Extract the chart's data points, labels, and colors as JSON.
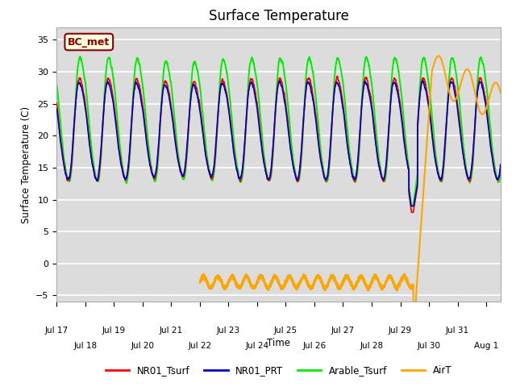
{
  "title": "Surface Temperature",
  "ylabel": "Surface Temperature (C)",
  "xlabel": "Time",
  "ylim": [
    -6,
    37
  ],
  "xlim_days": [
    0,
    15.5
  ],
  "tick_labels": [
    "Jul 17",
    "Jul 18",
    "Jul 19",
    "Jul 20",
    "Jul 21",
    "Jul 22",
    "Jul 23",
    "Jul 24",
    "Jul 25",
    "Jul 26",
    "Jul 27",
    "Jul 28",
    "Jul 29",
    "Jul 30",
    "Jul 31",
    "Aug 1"
  ],
  "legend_labels": [
    "NR01_Tsurf",
    "NR01_PRT",
    "Arable_Tsurf",
    "AirT"
  ],
  "legend_colors": [
    "#ff0000",
    "#0000cd",
    "#00ee00",
    "#ffa500"
  ],
  "annotation_text": "BC_met",
  "annotation_color": "#8b0000",
  "annotation_bg": "#ffffe0",
  "bg_color": "#dcdcdc",
  "grid_color": "#ffffff",
  "title_fontsize": 12,
  "yticks": [
    -5,
    0,
    5,
    10,
    15,
    20,
    25,
    30,
    35
  ]
}
